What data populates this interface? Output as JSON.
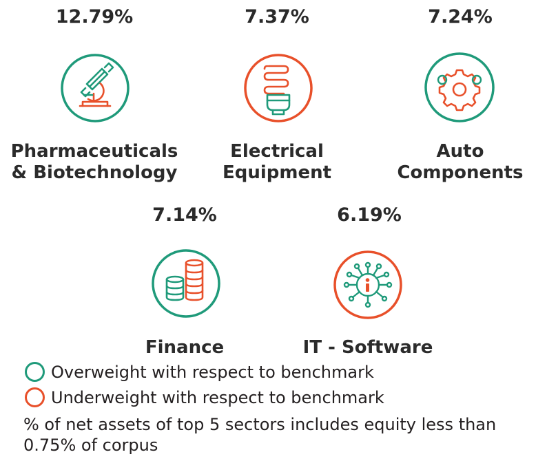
{
  "colors": {
    "overweight": "#1f9a7a",
    "underweight": "#e8502a",
    "text": "#231f20"
  },
  "sectors": [
    {
      "percent": "12.79%",
      "name_line1": "Pharmaceuticals",
      "name_line2": "& Biotechnology",
      "icon": "microscope-icon",
      "weight": "overweight"
    },
    {
      "percent": "7.37%",
      "name_line1": "Electrical",
      "name_line2": "Equipment",
      "icon": "light-bulb-icon",
      "weight": "underweight"
    },
    {
      "percent": "7.24%",
      "name_line1": "Auto",
      "name_line2": "Components",
      "icon": "gears-icon",
      "weight": "overweight"
    },
    {
      "percent": "7.14%",
      "name_line1": "Finance",
      "name_line2": "",
      "icon": "coin-stacks-icon",
      "weight": "overweight"
    },
    {
      "percent": "6.19%",
      "name_line1": "IT - Software",
      "name_line2": "",
      "icon": "chip-icon",
      "weight": "underweight"
    }
  ],
  "legend": {
    "overweight": "Overweight with respect to benchmark",
    "underweight": "Underweight with respect to benchmark"
  },
  "note": "% of net assets of top 5 sectors includes equity less than 0.75% of corpus"
}
